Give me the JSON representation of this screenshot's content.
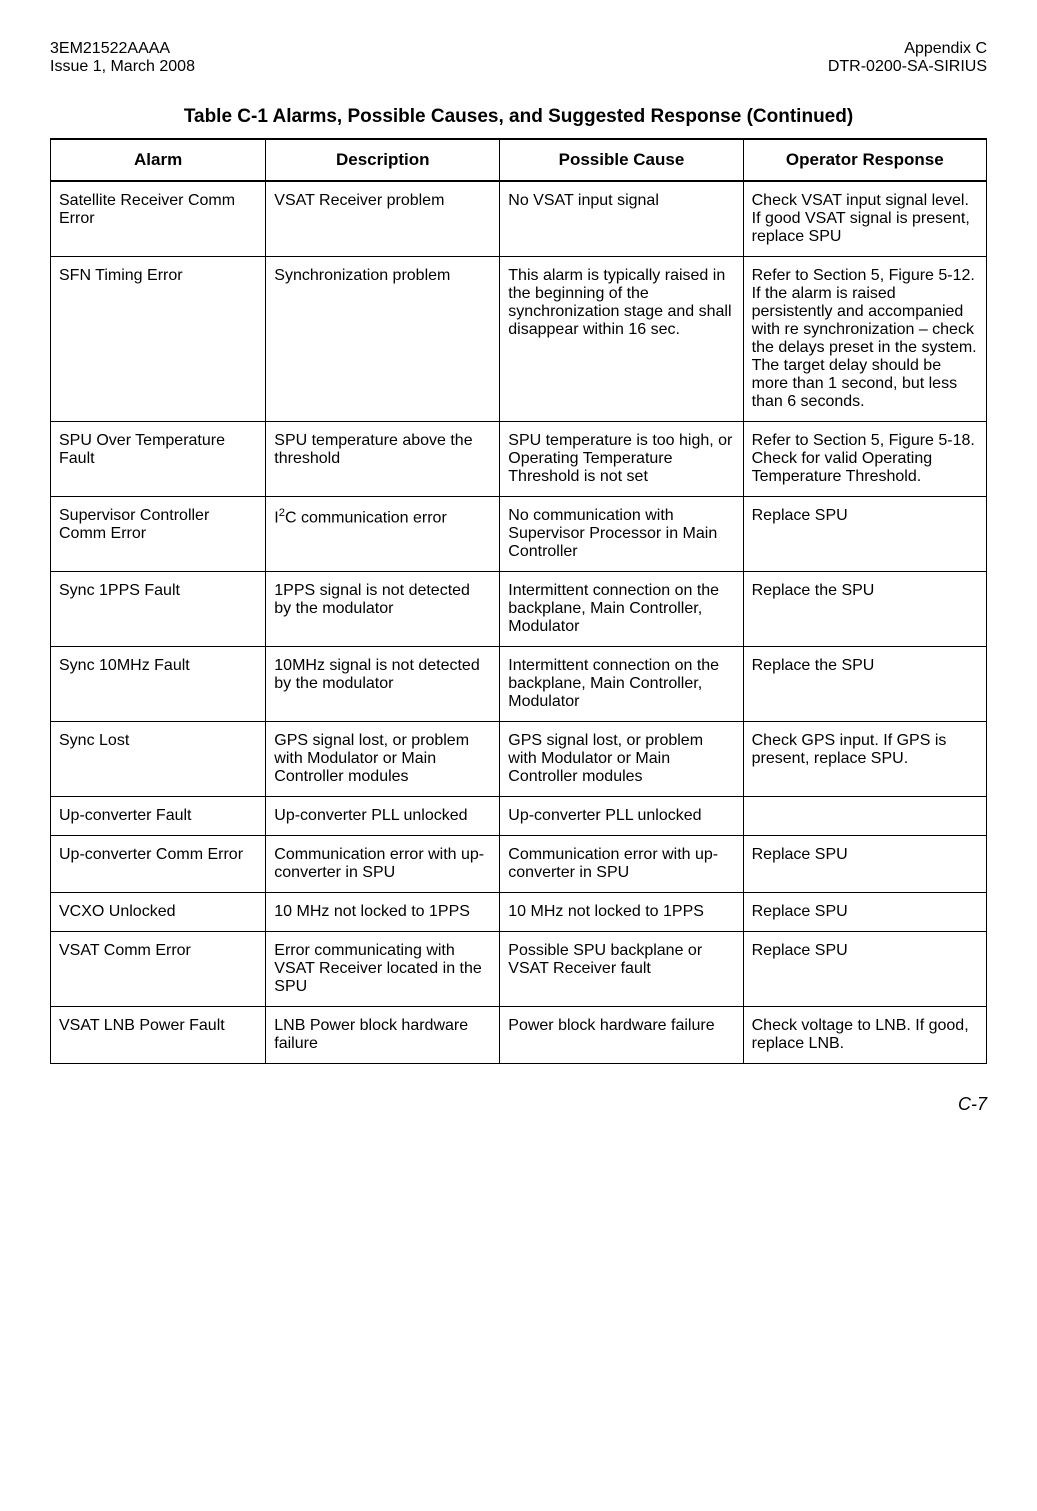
{
  "header": {
    "doc_id": "3EM21522AAAA",
    "issue": "Issue 1, March 2008",
    "appendix": "Appendix C",
    "doc_ref": "DTR-0200-SA-SIRIUS"
  },
  "table": {
    "title": "Table C-1  Alarms, Possible Causes, and Suggested Response  (Continued)",
    "columns": [
      "Alarm",
      "Description",
      "Possible Cause",
      "Operator Response"
    ],
    "rows": [
      {
        "alarm": "Satellite Receiver Comm Error",
        "description": "VSAT Receiver problem",
        "cause": "No VSAT input signal",
        "response": "Check VSAT input signal level. If good VSAT signal is present, replace SPU"
      },
      {
        "alarm": "SFN Timing Error",
        "description": "Synchronization problem",
        "cause": "This alarm is typically raised in the beginning of the synchronization stage and shall disappear within 16 sec.",
        "response": "Refer to Section 5, Figure 5-12. If the alarm is raised persistently and accompanied with re synchronization – check the delays preset in the system. The target delay should be more than 1 second, but less than 6 seconds."
      },
      {
        "alarm": "SPU Over Temperature Fault",
        "description": "SPU temperature above the threshold",
        "cause": "SPU temperature is too high, or Operating Temperature Threshold is not set",
        "response": "Refer to Section 5, Figure 5-18. Check for valid Operating Temperature Threshold."
      },
      {
        "alarm": "Supervisor Controller Comm Error",
        "description_html": "I<sup>2</sup>C communication error",
        "cause": "No communication with Supervisor Processor in Main Controller",
        "response": "Replace SPU"
      },
      {
        "alarm": "Sync 1PPS Fault",
        "description": "1PPS signal is not detected by the modulator",
        "cause": "Intermittent connection on the backplane, Main Controller, Modulator",
        "response": "Replace the SPU"
      },
      {
        "alarm": "Sync 10MHz Fault",
        "description": "10MHz signal is not detected by the modulator",
        "cause": "Intermittent connection on the backplane, Main Controller, Modulator",
        "response": "Replace the SPU"
      },
      {
        "alarm": "Sync Lost",
        "description": "GPS signal lost, or problem with Modulator or Main Controller modules",
        "cause": "GPS signal lost, or problem with Modulator or Main Controller modules",
        "response": "Check GPS input. If GPS is present, replace SPU."
      },
      {
        "alarm": "Up-converter Fault",
        "description": "Up-converter PLL unlocked",
        "cause": "Up-converter PLL unlocked",
        "response": ""
      },
      {
        "alarm": "Up-converter Comm Error",
        "description": "Communication error with up-converter in SPU",
        "cause": "Communication error with up-converter in SPU",
        "response": "Replace SPU"
      },
      {
        "alarm": "VCXO Unlocked",
        "description": "10 MHz not locked to 1PPS",
        "cause": "10 MHz not locked to 1PPS",
        "response": "Replace SPU"
      },
      {
        "alarm": "VSAT Comm Error",
        "description": "Error communicating with VSAT Receiver located in the SPU",
        "cause": "Possible SPU backplane or VSAT Receiver fault",
        "response": "Replace SPU"
      },
      {
        "alarm": "VSAT LNB Power Fault",
        "description": "LNB Power block hardware failure",
        "cause": "Power block hardware failure",
        "response": "Check voltage to LNB. If good, replace LNB."
      }
    ]
  },
  "footer": {
    "page_number": "C-7"
  },
  "styling": {
    "background_color": "#ffffff",
    "text_color": "#000000",
    "border_color": "#000000",
    "title_fontsize": 19,
    "header_fontsize": 16,
    "th_fontsize": 17,
    "td_fontsize": 16,
    "footer_fontsize": 18,
    "col_widths_pct": [
      23,
      25,
      26,
      26
    ]
  }
}
